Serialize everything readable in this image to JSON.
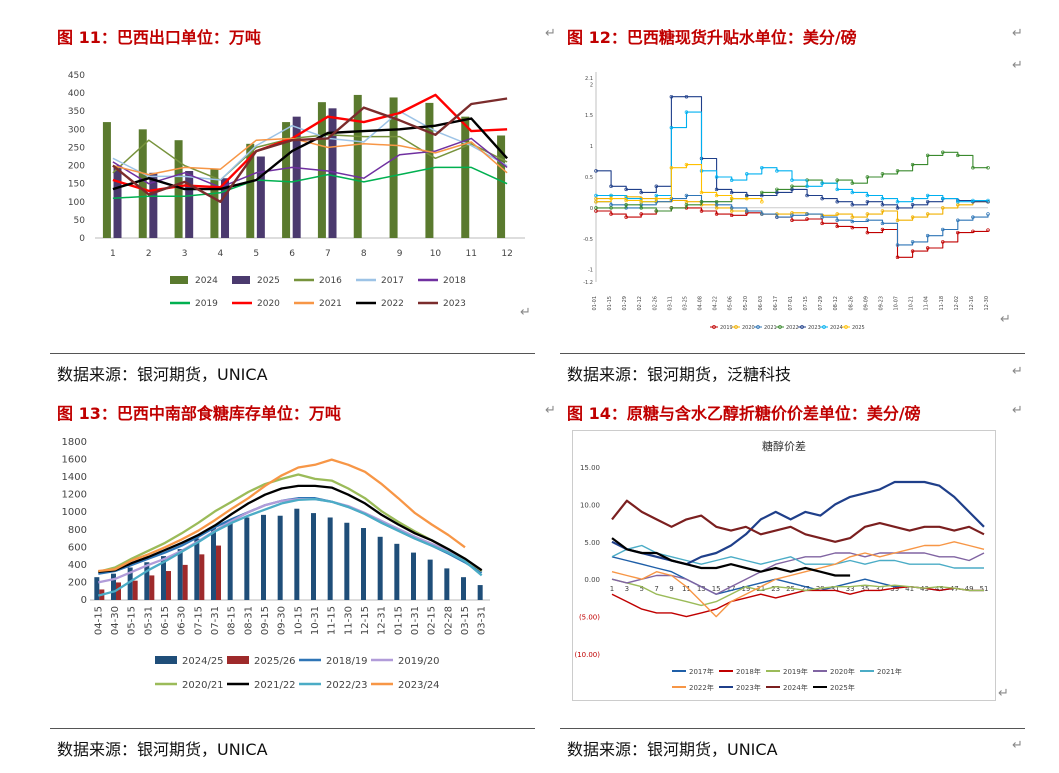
{
  "titles": {
    "c11": "图 11：巴西出口单位：万吨",
    "c12": "图 12：巴西糖现货升贴水单位：美分/磅",
    "c13": "图 13：巴西中南部食糖库存单位：万吨",
    "c14": "图 14：原糖与含水乙醇折糖价价差单位：美分/磅"
  },
  "sources": {
    "s11": "数据来源：银河期货，UNICA",
    "s12": "数据来源：银河期货，泛糖科技",
    "s13": "数据来源：银河期货，UNICA",
    "s14": "数据来源：银河期货，UNICA"
  },
  "return_mark": "↵",
  "chart_data": [
    {
      "id": "c11",
      "type": "bar",
      "categories": [
        "1",
        "2",
        "3",
        "4",
        "5",
        "6",
        "7",
        "8",
        "9",
        "10",
        "11",
        "12"
      ],
      "ylim": [
        0,
        450
      ],
      "yticks": [
        0,
        50,
        100,
        150,
        200,
        250,
        300,
        350,
        400,
        450
      ],
      "legend_position": "bottom",
      "bar_series": [
        {
          "name": "2024",
          "color": "#5a7a2e",
          "values": [
            320,
            300,
            270,
            190,
            260,
            320,
            375,
            395,
            388,
            373,
            335,
            283
          ]
        },
        {
          "name": "2025",
          "color": "#4b3a6e",
          "values": [
            200,
            180,
            185,
            165,
            225,
            335,
            358,
            null,
            null,
            null,
            null,
            null
          ]
        }
      ],
      "line_series": [
        {
          "name": "2016",
          "color": "#77933c",
          "values": [
            180,
            270,
            200,
            160,
            250,
            275,
            285,
            280,
            280,
            220,
            260,
            210
          ]
        },
        {
          "name": "2017",
          "color": "#9dc3e6",
          "values": [
            220,
            170,
            170,
            160,
            255,
            310,
            275,
            265,
            350,
            295,
            255,
            200
          ]
        },
        {
          "name": "2018",
          "color": "#7030a0",
          "values": [
            210,
            150,
            180,
            140,
            180,
            195,
            185,
            165,
            230,
            240,
            275,
            195
          ]
        },
        {
          "name": "2019",
          "color": "#00b050",
          "values": [
            110,
            115,
            115,
            125,
            160,
            155,
            175,
            155,
            175,
            195,
            195,
            150
          ]
        },
        {
          "name": "2020",
          "color": "#ff0000",
          "values": [
            160,
            130,
            145,
            140,
            240,
            275,
            335,
            320,
            345,
            395,
            295,
            300
          ]
        },
        {
          "name": "2021",
          "color": "#f79646",
          "values": [
            200,
            175,
            195,
            190,
            270,
            275,
            250,
            260,
            255,
            235,
            265,
            180
          ]
        },
        {
          "name": "2022",
          "color": "#000000",
          "values": [
            135,
            165,
            135,
            135,
            160,
            240,
            290,
            295,
            300,
            310,
            330,
            220
          ]
        },
        {
          "name": "2023",
          "color": "#7b2c2c",
          "values": [
            200,
            120,
            155,
            100,
            240,
            270,
            275,
            360,
            325,
            285,
            370,
            385
          ]
        }
      ]
    },
    {
      "id": "c12",
      "type": "line",
      "ylim": [
        -1.2,
        2.2
      ],
      "yticks": [
        -1.2,
        -1,
        -0.5,
        0,
        0.5,
        1,
        1.5,
        2,
        2.1
      ],
      "x": [
        "01-01",
        "01-15",
        "01-29",
        "02-12",
        "02-26",
        "03-11",
        "03-25",
        "04-08",
        "04-22",
        "05-06",
        "05-20",
        "06-03",
        "06-17",
        "07-01",
        "07-15",
        "07-29",
        "08-12",
        "08-26",
        "09-09",
        "09-23",
        "10-07",
        "10-21",
        "11-04",
        "11-18",
        "12-02",
        "12-16",
        "12-30"
      ],
      "legend_position": "bottom",
      "series": [
        {
          "name": "2019",
          "color": "#c00000",
          "values": [
            -0.05,
            -0.1,
            -0.15,
            -0.1,
            -0.05,
            0.0,
            0.0,
            -0.05,
            -0.1,
            -0.12,
            -0.08,
            -0.1,
            -0.15,
            -0.2,
            -0.18,
            -0.25,
            -0.3,
            -0.32,
            -0.4,
            -0.35,
            -0.8,
            -0.7,
            -0.65,
            -0.55,
            -0.4,
            -0.38,
            -0.36
          ]
        },
        {
          "name": "2020",
          "color": "#f0b000",
          "values": [
            0.15,
            0.2,
            0.18,
            0.15,
            0.1,
            0.12,
            0.1,
            0.05,
            0.0,
            -0.05,
            -0.05,
            -0.1,
            -0.1,
            -0.08,
            -0.1,
            -0.12,
            -0.1,
            -0.15,
            -0.1,
            -0.05,
            -0.2,
            -0.15,
            -0.1,
            0.0,
            0.05,
            0.1,
            0.1
          ]
        },
        {
          "name": "2021",
          "color": "#2e75b6",
          "values": [
            0.1,
            0.05,
            0.0,
            0.05,
            0.1,
            0.15,
            0.2,
            0.1,
            0.05,
            0.0,
            -0.05,
            -0.1,
            -0.15,
            -0.12,
            -0.1,
            -0.15,
            -0.2,
            -0.22,
            -0.2,
            -0.25,
            -0.6,
            -0.55,
            -0.45,
            -0.35,
            -0.2,
            -0.15,
            -0.1
          ]
        },
        {
          "name": "2022",
          "color": "#3a8a2e",
          "values": [
            0.0,
            0.0,
            0.05,
            0.0,
            -0.05,
            0.0,
            0.05,
            0.1,
            0.1,
            0.15,
            0.2,
            0.25,
            0.3,
            0.35,
            0.45,
            0.4,
            0.45,
            0.4,
            0.5,
            0.55,
            0.6,
            0.7,
            0.85,
            0.9,
            0.85,
            0.65,
            0.65
          ]
        },
        {
          "name": "2023",
          "color": "#1f3f8a",
          "values": [
            0.6,
            0.35,
            0.3,
            0.25,
            0.35,
            1.8,
            1.8,
            0.8,
            0.3,
            0.25,
            0.2,
            0.2,
            0.25,
            0.3,
            0.2,
            0.15,
            0.1,
            0.05,
            0.1,
            0.05,
            0.0,
            0.05,
            0.1,
            0.15,
            0.12,
            0.1,
            0.1
          ]
        },
        {
          "name": "2024",
          "color": "#00b0f0",
          "values": [
            0.2,
            0.2,
            0.15,
            0.1,
            0.2,
            1.3,
            1.55,
            0.6,
            0.5,
            0.45,
            0.55,
            0.65,
            0.6,
            0.45,
            0.35,
            0.4,
            0.3,
            0.25,
            0.2,
            0.15,
            0.1,
            0.15,
            0.2,
            0.15,
            0.1,
            0.12,
            0.12
          ]
        },
        {
          "name": "2025",
          "color": "#ffc000",
          "values": [
            0.1,
            0.15,
            0.12,
            0.1,
            0.15,
            0.65,
            0.7,
            0.25,
            0.2,
            0.15,
            0.15,
            0.1,
            null,
            null,
            null,
            null,
            null,
            null,
            null,
            null,
            null,
            null,
            null,
            null,
            null,
            null,
            null
          ]
        }
      ]
    },
    {
      "id": "c13",
      "type": "bar",
      "categories": [
        "04-15",
        "04-30",
        "05-15",
        "05-31",
        "06-15",
        "06-30",
        "07-15",
        "07-31",
        "08-15",
        "08-31",
        "09-15",
        "09-30",
        "10-15",
        "10-31",
        "11-15",
        "11-30",
        "12-15",
        "12-31",
        "01-15",
        "01-31",
        "02-15",
        "02-28",
        "03-15",
        "03-31"
      ],
      "ylim": [
        0,
        1800
      ],
      "yticks": [
        0,
        200,
        400,
        600,
        800,
        1000,
        1200,
        1400,
        1600,
        1800
      ],
      "legend_position": "bottom",
      "bar_series": [
        {
          "name": "2024/25",
          "color": "#1f4e79",
          "values": [
            260,
            300,
            370,
            430,
            500,
            580,
            700,
            820,
            890,
            940,
            970,
            960,
            1040,
            990,
            940,
            880,
            820,
            720,
            640,
            540,
            460,
            360,
            260,
            170
          ]
        },
        {
          "name": "2025/26",
          "color": "#9e2a2b",
          "values": [
            120,
            200,
            220,
            280,
            330,
            400,
            520,
            620,
            null,
            null,
            null,
            null,
            null,
            null,
            null,
            null,
            null,
            null,
            null,
            null,
            null,
            null,
            null,
            null
          ]
        }
      ],
      "line_series": [
        {
          "name": "2018/19",
          "color": "#2e75b6",
          "values": [
            300,
            330,
            400,
            470,
            540,
            620,
            720,
            830,
            920,
            1000,
            1080,
            1130,
            1160,
            1160,
            1120,
            1060,
            980,
            880,
            790,
            700,
            620,
            530,
            430,
            310
          ]
        },
        {
          "name": "2019/20",
          "color": "#b19cd9",
          "values": [
            200,
            240,
            320,
            400,
            470,
            560,
            670,
            790,
            900,
            1000,
            1080,
            1130,
            1150,
            1150,
            1120,
            1070,
            990,
            900,
            810,
            720,
            640,
            560,
            470,
            330
          ]
        },
        {
          "name": "2020/21",
          "color": "#9bbb59",
          "values": [
            320,
            370,
            470,
            560,
            650,
            760,
            880,
            1010,
            1120,
            1230,
            1320,
            1380,
            1430,
            1380,
            1360,
            1270,
            1160,
            1010,
            890,
            780,
            680,
            580,
            470,
            330
          ]
        },
        {
          "name": "2021/22",
          "color": "#000000",
          "values": [
            320,
            340,
            420,
            490,
            570,
            650,
            740,
            850,
            980,
            1100,
            1200,
            1270,
            1300,
            1300,
            1280,
            1200,
            1100,
            970,
            860,
            760,
            680,
            580,
            470,
            340
          ]
        },
        {
          "name": "2022/23",
          "color": "#4bacc6",
          "values": [
            50,
            100,
            220,
            340,
            440,
            550,
            660,
            780,
            880,
            960,
            1030,
            1100,
            1140,
            1150,
            1120,
            1060,
            980,
            880,
            790,
            700,
            620,
            540,
            440,
            280
          ]
        },
        {
          "name": "2023/24",
          "color": "#f79646",
          "values": [
            330,
            350,
            450,
            520,
            600,
            690,
            790,
            910,
            1040,
            1160,
            1300,
            1420,
            1510,
            1540,
            1600,
            1540,
            1460,
            1320,
            1160,
            990,
            860,
            740,
            600,
            null
          ]
        }
      ]
    },
    {
      "id": "c14",
      "type": "line",
      "title": "糖醇价差",
      "ylim": [
        -10,
        15
      ],
      "yticks": [
        "(10.00)",
        "(5.00)",
        "0.00",
        "5.00",
        "10.00",
        "15.00"
      ],
      "x": [
        "1",
        "3",
        "5",
        "7",
        "9",
        "11",
        "13",
        "15",
        "17",
        "19",
        "21",
        "23",
        "25",
        "27",
        "29",
        "31",
        "33",
        "35",
        "37",
        "39",
        "41",
        "43",
        "45",
        "47",
        "49",
        "51"
      ],
      "legend_position": "bottom",
      "series": [
        {
          "name": "2017年",
          "color": "#1f5fa8",
          "values": [
            3,
            2.5,
            2,
            1.5,
            1,
            0,
            -1,
            -2,
            -1.5,
            -1,
            -0.5,
            0,
            -0.5,
            -1,
            -1.5,
            -1,
            -0.5,
            0,
            -0.5,
            -1,
            -1,
            -1.2,
            -1.5,
            -1.2,
            -1.5,
            -1.5
          ]
        },
        {
          "name": "2018年",
          "color": "#c00000",
          "values": [
            -2,
            -3,
            -4,
            -4.5,
            -4.5,
            -5,
            -4.5,
            -4,
            -3,
            -2.5,
            -2,
            -2.5,
            -2,
            -1.5,
            -1.5,
            -1.5,
            -2,
            -1.5,
            -1.5,
            -1.2,
            -1,
            -1.2,
            -1.5,
            -1.2,
            -1.5,
            -1.5
          ]
        },
        {
          "name": "2019年",
          "color": "#9bbb59",
          "values": [
            0,
            -0.5,
            -1,
            -2,
            -2.5,
            -3,
            -3.5,
            -3,
            -2,
            -1,
            -1.5,
            -1,
            -1.2,
            -1.5,
            -1.2,
            -1,
            -1,
            -0.8,
            -1,
            -0.8,
            -1,
            -1.2,
            -1,
            -1.2,
            -1.5,
            -1.5
          ]
        },
        {
          "name": "2020年",
          "color": "#8064a2",
          "values": [
            0,
            -0.5,
            0,
            0.5,
            0.5,
            0,
            -1,
            -2,
            -1,
            0,
            1,
            2,
            2.5,
            3,
            3,
            3.5,
            3.5,
            3,
            3.5,
            3.5,
            3.5,
            3.5,
            3,
            3,
            2.5,
            3.5
          ]
        },
        {
          "name": "2021年",
          "color": "#4bacc6",
          "values": [
            3,
            4,
            4.5,
            3.5,
            3,
            2.5,
            2,
            2.5,
            3,
            2.5,
            2,
            2.5,
            3,
            2,
            2,
            2,
            2.5,
            2,
            2.5,
            2.5,
            2,
            2,
            2,
            1.5,
            1.5,
            1.5
          ]
        },
        {
          "name": "2022年",
          "color": "#f79646",
          "values": [
            1,
            0.5,
            0,
            1,
            0.5,
            -1,
            -3,
            -5,
            -3,
            -2,
            -1,
            0,
            0.5,
            1,
            1.5,
            2,
            3,
            3.5,
            3,
            3.5,
            4,
            4.5,
            4.5,
            5,
            4.5,
            4
          ]
        },
        {
          "name": "2023年",
          "color": "#1f3f8a",
          "values": [
            5,
            4,
            3.5,
            3,
            2.5,
            2,
            3,
            3.5,
            4.5,
            6,
            8,
            9,
            8,
            9,
            8.5,
            10,
            11,
            11.5,
            12,
            13,
            13,
            13,
            12.5,
            11,
            9,
            7
          ]
        },
        {
          "name": "2024年",
          "color": "#7b1f1f",
          "values": [
            8,
            10.5,
            9,
            8,
            7,
            8,
            8.5,
            7,
            6.5,
            7,
            6,
            6.5,
            7,
            6,
            5.5,
            5,
            5.5,
            7,
            7.5,
            7,
            6.5,
            7,
            7,
            6.5,
            7,
            6
          ]
        },
        {
          "name": "2025年",
          "color": "#000000",
          "values": [
            5.5,
            4,
            3.5,
            3.5,
            2.5,
            2,
            1.5,
            1.5,
            2,
            1.5,
            1,
            1.5,
            1,
            1.5,
            1,
            0.5,
            0.5,
            null,
            null,
            null,
            null,
            null,
            null,
            null,
            null,
            null
          ]
        }
      ]
    }
  ]
}
